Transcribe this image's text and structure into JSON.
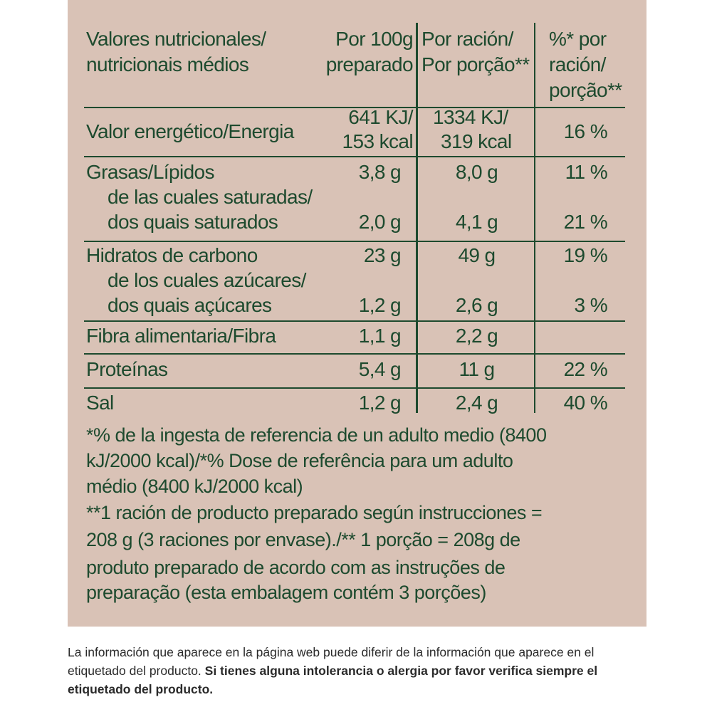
{
  "table": {
    "header": {
      "nutrient_line1": "Valores nutricionales/",
      "nutrient_line2": "nutricionais médios",
      "per100_line1": "Por 100g",
      "per100_line2": "preparado",
      "serving_line1": "Por ración/",
      "serving_line2": "Por porção**",
      "pct_line1": "%* por",
      "pct_line2": "ración/",
      "pct_line3": "porção**"
    },
    "rows": {
      "energy": {
        "label": "Valor energético/Energia",
        "per100_kj": "641 KJ/",
        "per100_kcal": "153 kcal",
        "serving_kj": "1334 KJ/",
        "serving_kcal": "319 kcal",
        "pct": "16 %"
      },
      "fat": {
        "label": "Grasas/Lípidos",
        "per100": "3,8 g",
        "serving": "8,0 g",
        "pct": "11 %"
      },
      "saturated": {
        "label_line1": "de las cuales saturadas/",
        "label_line2": "dos quais saturados",
        "per100": "2,0 g",
        "serving": "4,1 g",
        "pct": "21 %"
      },
      "carbs": {
        "label": "Hidratos de carbono",
        "per100": "23 g",
        "serving": "49 g",
        "pct": "19 %"
      },
      "sugars": {
        "label_line1": "de los cuales azúcares/",
        "label_line2": "dos quais açúcares",
        "per100": "1,2 g",
        "serving": "2,6 g",
        "pct": "3 %"
      },
      "fibre": {
        "label": "Fibra alimentaria/Fibra",
        "per100": "1,1 g",
        "serving": "2,2 g"
      },
      "protein": {
        "label": "Proteínas",
        "per100": "5,4 g",
        "serving": "11 g",
        "pct": "22 %"
      },
      "salt": {
        "label": "Sal",
        "per100": "1,2 g",
        "serving": "2,4 g",
        "pct": "40 %"
      }
    },
    "footnotes": {
      "line1": "*% de la ingesta de referencia de un adulto medio (8400",
      "line2": "kJ/2000 kcal)/*% Dose de referência para um adulto",
      "line3": "médio (8400 kJ/2000 kcal)",
      "line4": "**1 ración de producto preparado según instrucciones =",
      "line5": "208 g (3 raciones por envase)./** 1 porção = 208g de",
      "line6": "produto preparado de acordo com as instruções de",
      "line7": "preparação (esta embalagem contém 3 porções)"
    }
  },
  "disclaimer": {
    "normal": "La información que aparece en la página web puede diferir de la información que aparece en el etiquetado del producto. ",
    "bold": "Si tienes alguna intolerancia o alergia por favor verifica siempre el etiquetado del producto."
  },
  "colors": {
    "label_background": "#d9c2b6",
    "ink": "#1d4a2e"
  }
}
